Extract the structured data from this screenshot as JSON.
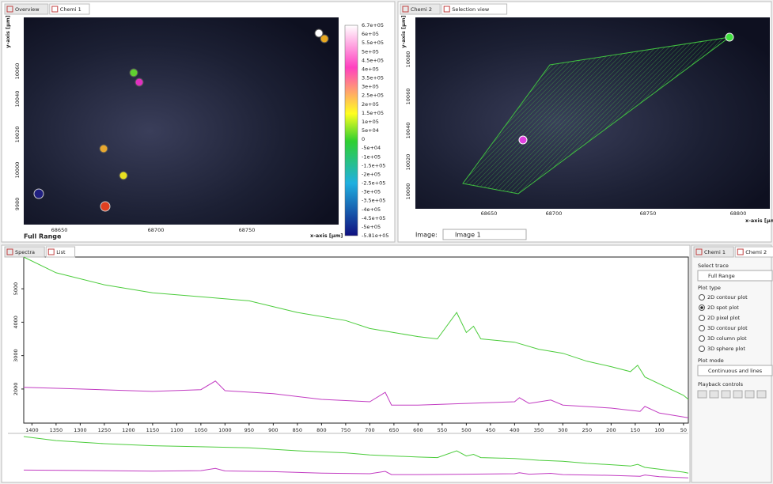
{
  "left_panel": {
    "tabs": [
      "Overview",
      "Chemi 1"
    ],
    "y_axis_label": "y-axis [µm]",
    "x_axis_label": "x-axis [µm]",
    "yticks": [
      10060,
      10040,
      10020,
      10000,
      9980
    ],
    "xticks": [
      68650,
      68700,
      68750
    ],
    "range_label": "Full Range",
    "colorbar_labels": [
      "6.7e+05",
      "6e+05",
      "5.5e+05",
      "5e+05",
      "4.5e+05",
      "4e+05",
      "3.5e+05",
      "3e+05",
      "2.5e+05",
      "2e+05",
      "1.5e+05",
      "1e+05",
      "5e+04",
      "0",
      "-5e+04",
      "-1e+05",
      "-1.5e+05",
      "-2e+05",
      "-2.5e+05",
      "-3e+05",
      "-3.5e+05",
      "-4e+05",
      "-4.5e+05",
      "-5e+05",
      "-5.81e+05"
    ]
  },
  "right_panel": {
    "tabs": [
      "Chemi 2",
      "Selection view"
    ],
    "y_axis_label": "y-axis [µm]",
    "yticks": [
      10080,
      10060,
      10040,
      10020,
      10000
    ],
    "xticks": [
      68650,
      68700,
      68750,
      68800
    ],
    "x_axis_label": "x-axis [µm",
    "image_label": "Image:",
    "image_value": "Image 1"
  },
  "spectra": {
    "tabs": [
      "Spectra",
      "List"
    ],
    "xlim": [
      1417,
      40
    ],
    "ylim": [
      980,
      5950
    ],
    "xticks": [
      1400,
      1350,
      1300,
      1250,
      1200,
      1150,
      1100,
      1050,
      1000,
      950,
      900,
      850,
      800,
      750,
      700,
      650,
      600,
      550,
      500,
      450,
      400,
      350,
      300,
      250,
      200,
      150,
      100,
      50
    ],
    "yticks": [
      2000,
      3000,
      4000,
      5000
    ],
    "series": [
      {
        "color": "#4ccc3c",
        "x": [
          1417,
          1350,
          1250,
          1150,
          1050,
          950,
          850,
          750,
          700,
          650,
          600,
          560,
          520,
          500,
          485,
          470,
          400,
          350,
          300,
          250,
          200,
          160,
          145,
          130,
          50,
          40
        ],
        "values": [
          5950,
          5480,
          5120,
          4880,
          4760,
          4640,
          4290,
          4050,
          3810,
          3690,
          3570,
          3500,
          4290,
          3690,
          3880,
          3500,
          3400,
          3190,
          3070,
          2830,
          2670,
          2520,
          2710,
          2360,
          1810,
          1690
        ]
      },
      {
        "color": "#c23cc2",
        "x": [
          1417,
          1300,
          1150,
          1050,
          1020,
          1000,
          900,
          800,
          700,
          668,
          655,
          600,
          500,
          400,
          390,
          370,
          325,
          300,
          200,
          140,
          130,
          100,
          40
        ],
        "values": [
          2050,
          2000,
          1930,
          1980,
          2240,
          1950,
          1860,
          1690,
          1620,
          1900,
          1520,
          1520,
          1570,
          1620,
          1740,
          1570,
          1670,
          1520,
          1430,
          1330,
          1480,
          1280,
          1140
        ]
      }
    ]
  },
  "side_panel": {
    "tabs": [
      "Chemi 1",
      "Chemi 2"
    ],
    "select_trace": "Select trace",
    "trace_value": "Full Range",
    "plot_type_label": "Plot type",
    "plot_types": [
      {
        "label": "2D contour plot",
        "selected": false
      },
      {
        "label": "2D spot plot",
        "selected": true
      },
      {
        "label": "2D pixel plot",
        "selected": false
      },
      {
        "label": "3D contour plot",
        "selected": false
      },
      {
        "label": "3D column plot",
        "selected": false
      },
      {
        "label": "3D sphere plot",
        "selected": false
      }
    ],
    "plot_mode_label": "Plot mode",
    "plot_mode_value": "Continuous and lines",
    "playback_label": "Playback controls"
  }
}
